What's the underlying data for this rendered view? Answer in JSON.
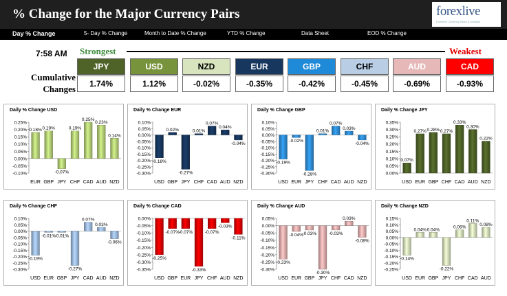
{
  "header": {
    "title": "% Change for the Major Currency Pairs",
    "logo": {
      "brand": "forexlive",
      "tagline": "Forexlive Currency News & Analysis"
    }
  },
  "tabs": [
    {
      "label": "Day % Change",
      "active": true
    },
    {
      "label": "5- Day % Change",
      "active": false
    },
    {
      "label": "Month to Date % Change",
      "active": false
    },
    {
      "label": "YTD % Change",
      "active": false
    },
    {
      "label": "Data Sheet",
      "active": false
    },
    {
      "label": "EOD % Change",
      "active": false
    }
  ],
  "summary": {
    "time": "7:58 AM",
    "strongest_label": "Strongest",
    "weakest_label": "Weakest",
    "cumulative_label_line1": "Cumulative",
    "cumulative_label_line2": "Changes",
    "currencies": [
      {
        "code": "JPY",
        "value": "1.74%",
        "bg": "#4f6228",
        "fg": "#ffffff"
      },
      {
        "code": "USD",
        "value": "1.12%",
        "bg": "#77933c",
        "fg": "#ffffff"
      },
      {
        "code": "NZD",
        "value": "-0.02%",
        "bg": "#d7e4bd",
        "fg": "#000000"
      },
      {
        "code": "EUR",
        "value": "-0.35%",
        "bg": "#17375e",
        "fg": "#ffffff"
      },
      {
        "code": "GBP",
        "value": "-0.42%",
        "bg": "#1f8ad8",
        "fg": "#ffffff"
      },
      {
        "code": "CHF",
        "value": "-0.45%",
        "bg": "#b9cde5",
        "fg": "#000000"
      },
      {
        "code": "AUD",
        "value": "-0.69%",
        "bg": "#e6b9b8",
        "fg": "#ffffff"
      },
      {
        "code": "CAD",
        "value": "-0.93%",
        "bg": "#ff0000",
        "fg": "#ffffff"
      }
    ]
  },
  "colors": {
    "positive_series_usd": "#b8d37a",
    "positive_series_jpy": "#4f6228",
    "eur": "#17375e",
    "gbp": "#2f8fd8",
    "chf": "#9fbde0",
    "cad": "#e00000",
    "aud": "#e6b0b0",
    "nzd": "#d7e4bd"
  },
  "chart_data": [
    {
      "type": "bar",
      "title": "Daily % Change USD",
      "categories": [
        "EUR",
        "GBP",
        "JPY",
        "CHF",
        "CAD",
        "AUD",
        "NZD"
      ],
      "values": [
        0.18,
        0.19,
        -0.07,
        0.19,
        0.25,
        0.23,
        0.14
      ],
      "labels": [
        "0.18%",
        "0.19%",
        "-0.07%",
        "0.19%",
        "0.25%",
        "0.23%",
        "0.14%"
      ],
      "ylim": [
        -0.1,
        0.25
      ],
      "yticks": [
        -0.1,
        -0.05,
        0.0,
        0.05,
        0.1,
        0.15,
        0.2,
        0.25
      ],
      "color": "#b8d37a"
    },
    {
      "type": "bar",
      "title": "Daily % Change EUR",
      "categories": [
        "USD",
        "GBP",
        "JPY",
        "CHF",
        "CAD",
        "AUD",
        "NZD"
      ],
      "values": [
        -0.18,
        0.02,
        -0.27,
        0.01,
        0.07,
        0.04,
        -0.04
      ],
      "labels": [
        "-0.18%",
        "0.02%",
        "-0.27%",
        "0.01%",
        "0.07%",
        "0.04%",
        "-0.04%"
      ],
      "ylim": [
        -0.3,
        0.1
      ],
      "yticks": [
        -0.3,
        -0.25,
        -0.2,
        -0.15,
        -0.1,
        -0.05,
        0.0,
        0.05,
        0.1
      ],
      "color": "#17375e"
    },
    {
      "type": "bar",
      "title": "Daily % Change GBP",
      "categories": [
        "USD",
        "EUR",
        "JPY",
        "CHF",
        "CAD",
        "AUD",
        "NZD"
      ],
      "values": [
        -0.19,
        -0.02,
        -0.28,
        0.01,
        0.07,
        0.03,
        -0.04
      ],
      "labels": [
        "-0.19%",
        "-0.02%",
        "-0.28%",
        "0.01%",
        "0.07%",
        "0.03%",
        "-0.04%"
      ],
      "ylim": [
        -0.3,
        0.1
      ],
      "yticks": [
        -0.3,
        -0.25,
        -0.2,
        -0.15,
        -0.1,
        -0.05,
        0.0,
        0.05,
        0.1
      ],
      "color": "#2f8fd8"
    },
    {
      "type": "bar",
      "title": "Daily % Change JPY",
      "categories": [
        "USD",
        "EUR",
        "GBP",
        "CHF",
        "CAD",
        "AUD",
        "NZD"
      ],
      "values": [
        0.07,
        0.27,
        0.28,
        0.27,
        0.33,
        0.3,
        0.22
      ],
      "labels": [
        "0.07%",
        "0.27%",
        "0.28%",
        "0.27%",
        "0.33%",
        "0.30%",
        "0.22%"
      ],
      "ylim": [
        0.0,
        0.35
      ],
      "yticks": [
        0.0,
        0.05,
        0.1,
        0.15,
        0.2,
        0.25,
        0.3,
        0.35
      ],
      "color": "#4f6228"
    },
    {
      "type": "bar",
      "title": "Daily % Change CHF",
      "categories": [
        "USD",
        "EUR",
        "GBP",
        "JPY",
        "CAD",
        "AUD",
        "NZD"
      ],
      "values": [
        -0.19,
        -0.01,
        -0.01,
        -0.27,
        0.07,
        0.03,
        -0.06
      ],
      "labels": [
        "-0.19%",
        "-0.01%",
        "-0.01%",
        "-0.27%",
        "0.07%",
        "0.03%",
        "-0.06%"
      ],
      "ylim": [
        -0.3,
        0.1
      ],
      "yticks": [
        -0.3,
        -0.25,
        -0.2,
        -0.15,
        -0.1,
        -0.05,
        0.0,
        0.05,
        0.1
      ],
      "color": "#9fbde0"
    },
    {
      "type": "bar",
      "title": "Daily % Change CAD",
      "categories": [
        "USD",
        "GBP",
        "EUR",
        "JPY",
        "CHF",
        "AUD",
        "NZD"
      ],
      "values": [
        -0.25,
        -0.07,
        -0.07,
        -0.33,
        -0.07,
        -0.03,
        -0.11
      ],
      "labels": [
        "-0.25%",
        "-0.07%",
        "-0.07%",
        "-0.33%",
        "-0.07%",
        "-0.03%",
        "-0.11%"
      ],
      "ylim": [
        -0.35,
        0.0
      ],
      "yticks": [
        -0.35,
        -0.3,
        -0.25,
        -0.2,
        -0.15,
        -0.1,
        -0.05,
        0.0
      ],
      "color": "#e00000"
    },
    {
      "type": "bar",
      "title": "Daily % Change AUD",
      "categories": [
        "USD",
        "EUR",
        "GBP",
        "JPY",
        "CHF",
        "CAD",
        "NZD"
      ],
      "values": [
        -0.23,
        -0.04,
        -0.03,
        -0.3,
        -0.03,
        0.03,
        -0.08
      ],
      "labels": [
        "-0.23%",
        "-0.04%",
        "-0.03%",
        "-0.30%",
        "-0.03%",
        "0.03%",
        "-0.08%"
      ],
      "ylim": [
        -0.3,
        0.05
      ],
      "yticks": [
        -0.3,
        -0.25,
        -0.2,
        -0.15,
        -0.1,
        -0.05,
        0.0,
        0.05
      ],
      "color": "#e6b0b0"
    },
    {
      "type": "bar",
      "title": "Daily % Change NZD",
      "categories": [
        "USD",
        "EUR",
        "GBP",
        "JPY",
        "CHF",
        "CAD",
        "AUD"
      ],
      "values": [
        -0.14,
        0.04,
        0.04,
        -0.22,
        0.06,
        0.11,
        0.08
      ],
      "labels": [
        "-0.14%",
        "0.04%",
        "0.04%",
        "-0.22%",
        "0.06%",
        "0.11%",
        "0.08%"
      ],
      "ylim": [
        -0.25,
        0.15
      ],
      "yticks": [
        -0.25,
        -0.2,
        -0.15,
        -0.1,
        -0.05,
        0.0,
        0.05,
        0.1,
        0.15
      ],
      "color": "#d7e4bd"
    }
  ]
}
